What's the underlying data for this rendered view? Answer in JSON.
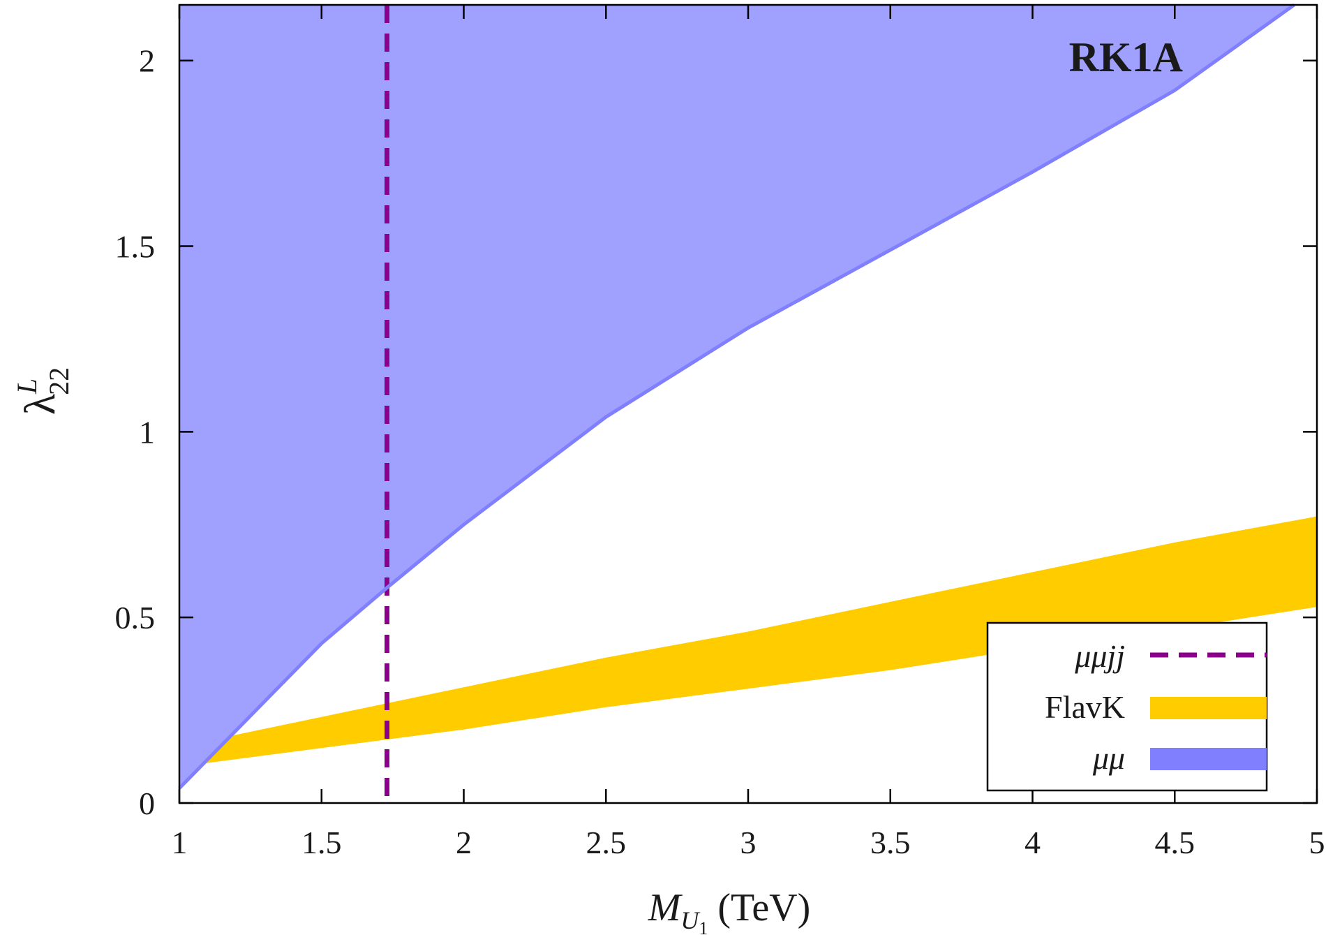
{
  "chart_data": {
    "type": "area",
    "title": "RK1A",
    "xlabel": {
      "main": "M",
      "sub": "U",
      "subsub": "1",
      "unit": "(TeV)"
    },
    "ylabel": {
      "main": "λ",
      "sup": "L",
      "sub": "22"
    },
    "xlim": [
      1,
      5
    ],
    "ylim": [
      0,
      2.15
    ],
    "xticks": [
      1,
      1.5,
      2,
      2.5,
      3,
      3.5,
      4,
      4.5,
      5
    ],
    "xtick_labels": [
      "1",
      "1.5",
      "2",
      "2.5",
      "3",
      "3.5",
      "4",
      "4.5",
      "5"
    ],
    "yticks": [
      0,
      0.5,
      1,
      1.5,
      2
    ],
    "ytick_labels": [
      "0",
      "0.5",
      "1",
      "1.5",
      "2"
    ],
    "grid": false,
    "legend_position": "bottom-right",
    "series": [
      {
        "name": "μμjj",
        "kind": "vertical-dashed-line",
        "color": "#8b008b",
        "x": 1.73
      },
      {
        "name": "FlavK",
        "kind": "band",
        "color": "#ffcc00",
        "x": [
          1,
          1.5,
          2,
          2.5,
          3,
          3.5,
          4,
          4.5,
          5
        ],
        "lower": [
          0.1,
          0.15,
          0.2,
          0.26,
          0.31,
          0.36,
          0.42,
          0.47,
          0.53
        ],
        "upper": [
          0.15,
          0.23,
          0.31,
          0.39,
          0.46,
          0.54,
          0.62,
          0.7,
          0.77
        ]
      },
      {
        "name": "μμ",
        "kind": "excluded-region-above",
        "color": "#8080ff",
        "x": [
          1,
          1.5,
          1.73,
          2,
          2.5,
          3,
          3.5,
          4,
          4.5,
          4.92
        ],
        "y": [
          0.04,
          0.43,
          0.58,
          0.75,
          1.04,
          1.28,
          1.49,
          1.7,
          1.92,
          2.15
        ]
      }
    ]
  }
}
